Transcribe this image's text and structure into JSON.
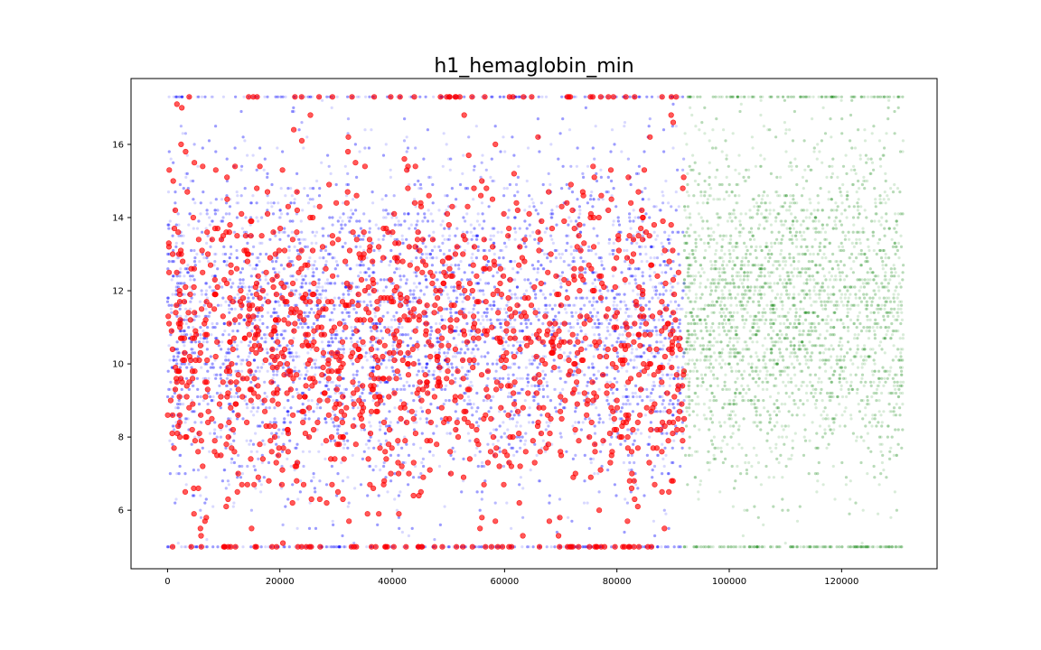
{
  "chart_data": {
    "type": "scatter",
    "title": "h1_hemaglobin_min",
    "xlabel": "",
    "ylabel": "",
    "xlim": [
      -6500,
      137000
    ],
    "ylim": [
      4.4,
      17.8
    ],
    "x_ticks": [
      0,
      20000,
      40000,
      60000,
      80000,
      100000,
      120000
    ],
    "y_ticks": [
      6,
      8,
      10,
      12,
      14,
      16
    ],
    "grid": false,
    "legend": "none",
    "series": [
      {
        "color": "#0000ff",
        "alpha": 0.15,
        "marker_size": "small",
        "x_range": [
          0,
          92000
        ],
        "y_range": [
          5.0,
          17.3
        ],
        "y_center": 11.0,
        "approx_count": 9000
      },
      {
        "color": "#ff0000",
        "alpha": 0.65,
        "marker_size": "medium",
        "x_range": [
          0,
          92000
        ],
        "y_range": [
          5.0,
          17.3
        ],
        "y_center": 10.5,
        "approx_count": 1400
      },
      {
        "color": "#008000",
        "alpha": 0.15,
        "marker_size": "small",
        "x_range": [
          92000,
          131000
        ],
        "y_range": [
          5.0,
          17.3
        ],
        "y_center": 11.5,
        "approx_count": 4000
      }
    ]
  }
}
